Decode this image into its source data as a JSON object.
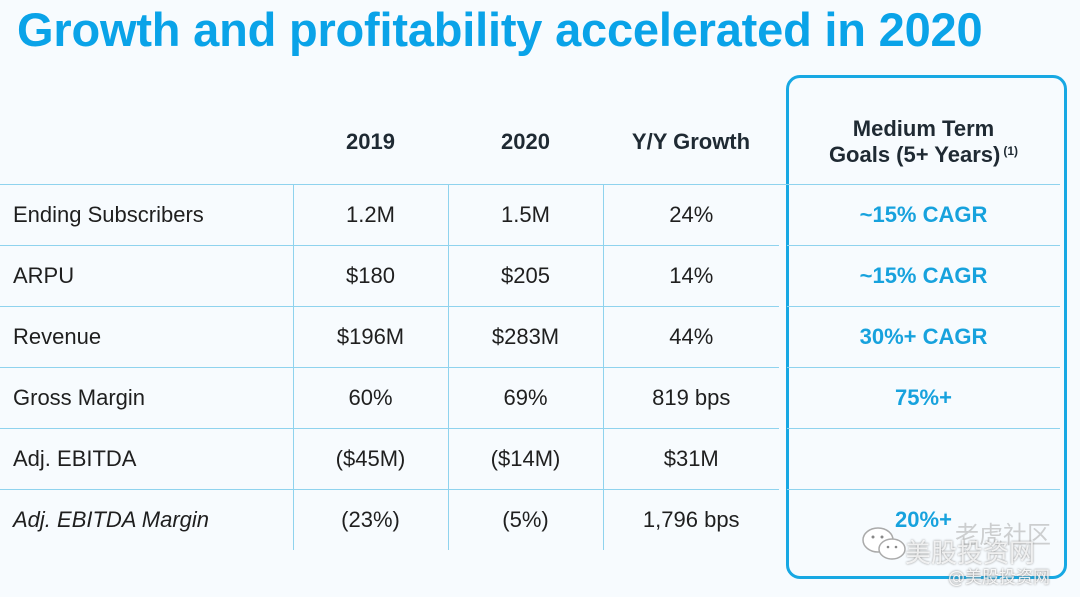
{
  "title": "Growth and profitability accelerated in 2020",
  "table": {
    "headers": [
      "",
      "2019",
      "2020",
      "Y/Y Growth"
    ],
    "goals_header": {
      "line1": "Medium Term",
      "line2": "Goals (5+ Years)",
      "footnote": "(1)"
    },
    "rows": [
      {
        "label": "Ending Subscribers",
        "y2019": "1.2M",
        "y2020": "1.5M",
        "growth": "24%",
        "goal": "~15% CAGR",
        "italic": false
      },
      {
        "label": "ARPU",
        "y2019": "$180",
        "y2020": "$205",
        "growth": "14%",
        "goal": "~15% CAGR",
        "italic": false
      },
      {
        "label": "Revenue",
        "y2019": "$196M",
        "y2020": "$283M",
        "growth": "44%",
        "goal": "30%+ CAGR",
        "italic": false
      },
      {
        "label": "Gross Margin",
        "y2019": "60%",
        "y2020": "69%",
        "growth": "819 bps",
        "goal": "75%+",
        "italic": false
      },
      {
        "label": "Adj. EBITDA",
        "y2019": "($45M)",
        "y2020": "($14M)",
        "growth": "$31M",
        "goal": "",
        "italic": false
      },
      {
        "label": "Adj. EBITDA Margin",
        "y2019": "(23%)",
        "y2020": "(5%)",
        "growth": "1,796 bps",
        "goal": "20%+",
        "italic": true
      }
    ]
  },
  "watermark": {
    "line1": "老虎社区",
    "line2": "美股投资网",
    "line3": "@美股投资网"
  },
  "colors": {
    "accent": "#0aa3e8",
    "grid": "#8fd3ee",
    "goal_text": "#17a2dd"
  }
}
